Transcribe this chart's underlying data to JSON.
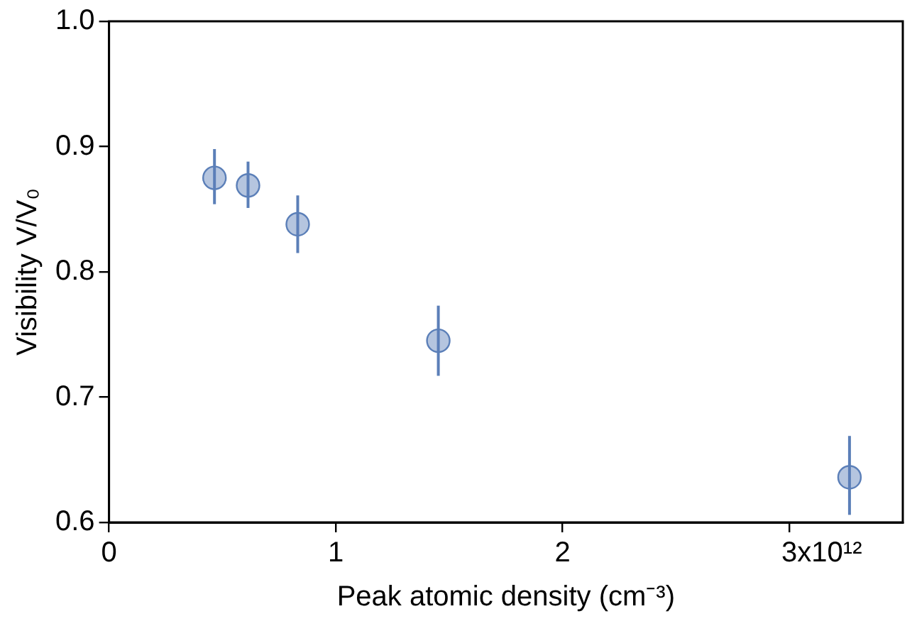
{
  "chart_data": {
    "type": "scatter",
    "xlabel": "Peak atomic density (cm⁻³)",
    "ylabel": "Visibility V/V₀",
    "x": [
      0.465,
      0.613,
      0.832,
      1.452,
      3.265
    ],
    "series": [
      {
        "color": "#5b7fb8",
        "values": [
          0.875,
          0.869,
          0.838,
          0.745,
          0.636
        ],
        "errors": [
          [
            0.854,
            0.898
          ],
          [
            0.851,
            0.888
          ],
          [
            0.815,
            0.861
          ],
          [
            0.717,
            0.773
          ],
          [
            0.606,
            0.669
          ]
        ]
      }
    ],
    "xlim": [
      0,
      3.5
    ],
    "xticks": [
      0,
      1,
      2,
      3
    ],
    "annotations": [
      "x10¹²"
    ],
    "ylim": [
      0.6,
      1.0
    ],
    "yticks": [
      0.6,
      0.7,
      0.8,
      0.9,
      {
        "value": 1,
        "label": "1.0"
      }
    ],
    "grid": false,
    "legend": false,
    "marker": "circle"
  }
}
